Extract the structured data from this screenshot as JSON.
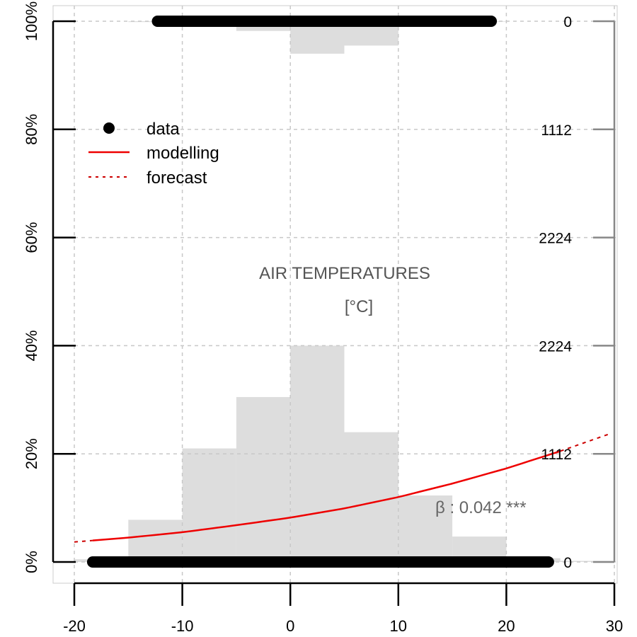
{
  "chart_data": {
    "type": "scatter",
    "title": "",
    "xlim": [
      -20,
      30
    ],
    "ylim": [
      0,
      1
    ],
    "grid": true,
    "x_ticks": [
      -20,
      -10,
      0,
      10,
      20,
      30
    ],
    "x_tick_labels": [
      "-20",
      "-10",
      "0",
      "10",
      "20",
      "30"
    ],
    "y_ticks": [
      0,
      0.2,
      0.4,
      0.6,
      0.8,
      1.0
    ],
    "y_tick_labels": [
      "0%",
      "20%",
      "40%",
      "60%",
      "80%",
      "100%"
    ],
    "right_axis": {
      "values": [
        0,
        0.2,
        0.4,
        0.6,
        0.8,
        1.0
      ],
      "labels": [
        "0",
        "1112",
        "2224",
        "2224",
        "1112",
        "0"
      ]
    },
    "variable_label": "AIR TEMPERATURES",
    "unit_label": "[°C]",
    "beta_label": "β : 0.042 ***",
    "legend": {
      "position": "top-left",
      "entries": [
        {
          "label": "data",
          "type": "point"
        },
        {
          "label": "modelling",
          "type": "solid-line"
        },
        {
          "label": "forecast",
          "type": "dashed-line"
        }
      ]
    },
    "histogram_bottom": {
      "bin_width": 5,
      "bins": [
        {
          "x": -20,
          "value": 0.005
        },
        {
          "x": -15,
          "value": 0.078
        },
        {
          "x": -10,
          "value": 0.21
        },
        {
          "x": -5,
          "value": 0.305
        },
        {
          "x": 0,
          "value": 0.4
        },
        {
          "x": 5,
          "value": 0.24
        },
        {
          "x": 10,
          "value": 0.123
        },
        {
          "x": 15,
          "value": 0.047
        },
        {
          "x": 20,
          "value": 0.007
        },
        {
          "x": 25,
          "value": 0.002
        }
      ]
    },
    "histogram_top": {
      "bin_width": 5,
      "bins": [
        {
          "x": -15,
          "value": 0.0015
        },
        {
          "x": -10,
          "value": 0.001
        },
        {
          "x": -5,
          "value": 0.018
        },
        {
          "x": 0,
          "value": 0.06
        },
        {
          "x": 5,
          "value": 0.045
        },
        {
          "x": 10,
          "value": 0.002
        },
        {
          "x": 15,
          "value": 0.001
        }
      ]
    },
    "data_points": {
      "y0_range": [
        -18.3,
        23.9
      ],
      "y1_range": [
        -12.3,
        18.6
      ]
    },
    "model_curve": {
      "modelling_range": [
        -18.3,
        25.0
      ],
      "forecast_left": [
        -20,
        -18.3
      ],
      "forecast_right": [
        25.0,
        29.5
      ],
      "points": [
        {
          "x": -20,
          "y": 0.037
        },
        {
          "x": -15,
          "y": 0.045
        },
        {
          "x": -10,
          "y": 0.055
        },
        {
          "x": -5,
          "y": 0.068
        },
        {
          "x": 0,
          "y": 0.082
        },
        {
          "x": 5,
          "y": 0.099
        },
        {
          "x": 10,
          "y": 0.12
        },
        {
          "x": 15,
          "y": 0.145
        },
        {
          "x": 20,
          "y": 0.173
        },
        {
          "x": 25,
          "y": 0.205
        },
        {
          "x": 30,
          "y": 0.24
        }
      ]
    },
    "colors": {
      "histogram": "#dddddd",
      "points": "#000000",
      "modelling": "#ee0000",
      "forecast": "#cc0000",
      "grid": "#c8c8c8",
      "right_axis": "#888888",
      "center_label": "#555555",
      "beta": "#666666"
    }
  }
}
